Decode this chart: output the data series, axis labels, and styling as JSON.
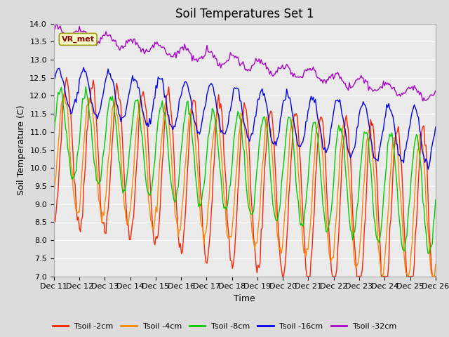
{
  "title": "Soil Temperatures Set 1",
  "xlabel": "Time",
  "ylabel": "Soil Temperature (C)",
  "ylim": [
    7.0,
    14.0
  ],
  "yticks": [
    7.0,
    7.5,
    8.0,
    8.5,
    9.0,
    9.5,
    10.0,
    10.5,
    11.0,
    11.5,
    12.0,
    12.5,
    13.0,
    13.5,
    14.0
  ],
  "xtick_labels": [
    "Dec 11",
    "Dec 12",
    "Dec 13",
    "Dec 14",
    "Dec 15",
    "Dec 16",
    "Dec 17",
    "Dec 18",
    "Dec 19",
    "Dec 20",
    "Dec 21",
    "Dec 22",
    "Dec 23",
    "Dec 24",
    "Dec 25",
    "Dec 26"
  ],
  "colors": {
    "Tsoil_2cm": "#ff2200",
    "Tsoil_4cm": "#ff8800",
    "Tsoil_8cm": "#00cc00",
    "Tsoil_16cm": "#0000ee",
    "Tsoil_32cm": "#aa00cc"
  },
  "legend_labels": [
    "Tsoil -2cm",
    "Tsoil -4cm",
    "Tsoil -8cm",
    "Tsoil -16cm",
    "Tsoil -32cm"
  ],
  "annotation_text": "VR_met",
  "background_color": "#dcdcdc",
  "plot_bg_color": "#ebebeb",
  "grid_color": "#ffffff",
  "title_fontsize": 12,
  "axis_fontsize": 9,
  "tick_fontsize": 8
}
